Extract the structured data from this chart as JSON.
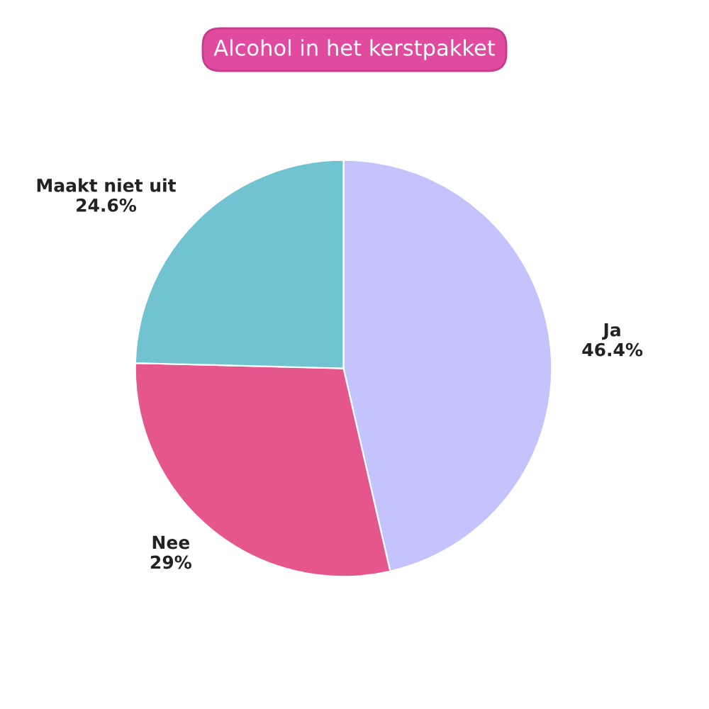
{
  "chart_data": {
    "type": "pie",
    "title": "Alcohol in het kerstpakket",
    "categories": [
      "Ja",
      "Nee",
      "Maakt niet uit"
    ],
    "values": [
      46.4,
      29,
      24.6
    ],
    "value_labels": [
      "46.4%",
      "29%",
      "24.6%"
    ],
    "colors": [
      "#c5c3fd",
      "#e5568c",
      "#72c3d2"
    ],
    "legend": false
  }
}
